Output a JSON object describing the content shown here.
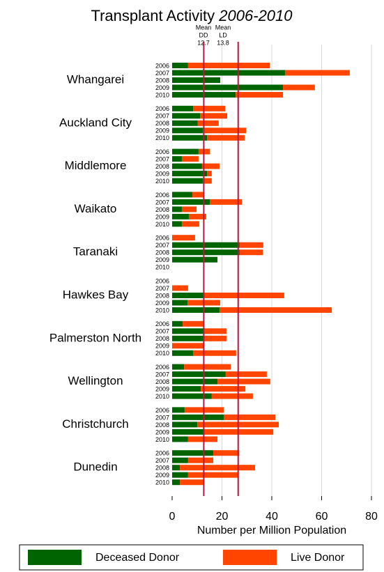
{
  "chart_data": {
    "type": "grouped-stacked-barh",
    "title": "Transplant Activity",
    "subtitle": "2006-2010",
    "xlabel": "Number per Million Population",
    "groups": [
      "Whangarei",
      "Auckland City",
      "Middlemore",
      "Waikato",
      "Taranaki",
      "Hawkes Bay",
      "Palmerston North",
      "Wellington",
      "Christchurch",
      "Dunedin"
    ],
    "years": [
      "2006",
      "2007",
      "2008",
      "2009",
      "2010"
    ],
    "series": [
      {
        "name": "Deceased Donor",
        "color": "#006400",
        "values": [
          [
            6.4,
            45.3,
            19.3,
            44.5,
            25.5
          ],
          [
            8.4,
            11.2,
            10.3,
            12.3,
            14.0
          ],
          [
            10.6,
            3.9,
            12.0,
            14.0,
            12.3
          ],
          [
            8.1,
            15.1,
            3.9,
            6.7,
            3.9
          ],
          [
            0,
            27.1,
            27.1,
            18.2,
            0
          ],
          [
            0,
            0,
            12.6,
            6.2,
            19.0
          ],
          [
            4.2,
            12.6,
            12.6,
            0,
            8.4
          ],
          [
            4.8,
            21.5,
            18.2,
            11.5,
            15.9
          ],
          [
            5.0,
            20.7,
            10.1,
            13.1,
            6.4
          ],
          [
            16.5,
            6.4,
            3.1,
            6.4,
            3.1
          ]
        ]
      },
      {
        "name": "Live Donor",
        "color": "#ff4500",
        "values": [
          [
            32.8,
            26.0,
            0,
            12.8,
            19.0
          ],
          [
            12.9,
            10.9,
            8.4,
            17.4,
            15.1
          ],
          [
            4.5,
            6.7,
            7.0,
            1.9,
            3.6
          ],
          [
            4.5,
            12.9,
            5.9,
            7.0,
            7.0
          ],
          [
            9.2,
            9.5,
            9.3,
            0,
            0
          ],
          [
            0,
            6.4,
            32.4,
            13.1,
            45.1
          ],
          [
            8.4,
            9.2,
            9.2,
            12.9,
            17.3
          ],
          [
            18.7,
            16.5,
            21.2,
            17.9,
            16.5
          ],
          [
            15.7,
            20.7,
            32.7,
            27.5,
            11.8
          ],
          [
            10.4,
            10.1,
            30.2,
            19.9,
            9.8
          ]
        ]
      }
    ],
    "annotations": [
      {
        "label": [
          "Mean",
          "DD"
        ],
        "value": 12.7
      },
      {
        "label": [
          "Mean",
          "LD"
        ],
        "value": 13.8
      }
    ],
    "xlim": [
      0,
      85
    ],
    "xticks": [
      0,
      20,
      40,
      60,
      80
    ],
    "grid": true
  }
}
